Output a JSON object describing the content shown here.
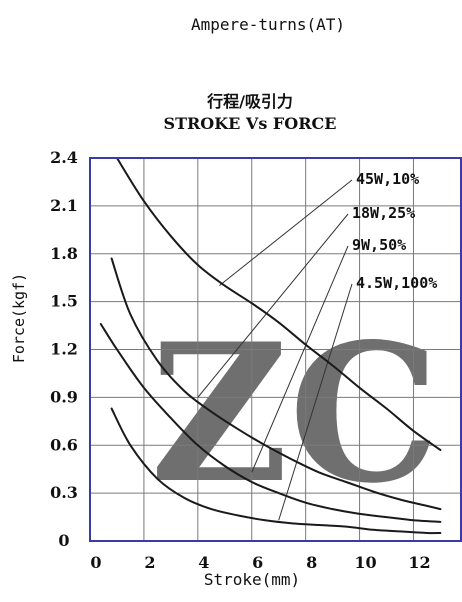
{
  "header": {
    "top_label": "Ampere-turns(AT)",
    "title_cn": "行程/吸引力",
    "title_en": "STROKE Vs FORCE"
  },
  "colors": {
    "frame": "#3a3aa8",
    "grid": "#7a7a7a",
    "curve": "#1a1a1a",
    "leader": "#333333",
    "watermark": "#d8dcf0"
  },
  "watermark": {
    "text": "ZC"
  },
  "chart_data": {
    "type": "line",
    "title": "STROKE Vs FORCE",
    "xlabel": "Stroke(mm)",
    "ylabel": "Force(kgf)",
    "xlim": [
      0,
      13.8
    ],
    "ylim": [
      0,
      2.4
    ],
    "xticks": [
      0,
      2,
      4,
      6,
      8,
      10,
      12
    ],
    "yticks": [
      0,
      0.3,
      0.6,
      0.9,
      1.2,
      1.5,
      1.8,
      2.1,
      2.4
    ],
    "xtick_labels": [
      "0",
      "2",
      "4",
      "6",
      "8",
      "10",
      "12"
    ],
    "ytick_labels": [
      "0",
      "0.3",
      "0.6",
      "0.9",
      "1.2",
      "1.5",
      "1.8",
      "2.1",
      "2.4"
    ],
    "grid": true,
    "series": [
      {
        "name": "45W,10%",
        "x": [
          1.0,
          2.0,
          3.0,
          4.0,
          5.0,
          6.0,
          7.0,
          8.0,
          9.0,
          10.0,
          11.0,
          12.0,
          13.0
        ],
        "y": [
          2.4,
          2.13,
          1.91,
          1.73,
          1.6,
          1.49,
          1.37,
          1.23,
          1.1,
          0.96,
          0.83,
          0.69,
          0.57
        ],
        "label_point": [
          4.8,
          1.6
        ]
      },
      {
        "name": "18W,25%",
        "x": [
          0.8,
          1.5,
          2.5,
          3.5,
          4.5,
          5.5,
          6.5,
          7.5,
          8.5,
          9.5,
          10.5,
          11.5,
          12.5,
          13.0
        ],
        "y": [
          1.77,
          1.42,
          1.13,
          0.94,
          0.81,
          0.7,
          0.6,
          0.51,
          0.43,
          0.37,
          0.31,
          0.26,
          0.22,
          0.2
        ],
        "label_point": [
          4.0,
          0.9
        ]
      },
      {
        "name": "9W,50%",
        "x": [
          0.4,
          1.0,
          2.0,
          3.0,
          4.0,
          5.0,
          6.0,
          7.0,
          8.0,
          9.0,
          10.0,
          11.0,
          12.0,
          13.0
        ],
        "y": [
          1.36,
          1.2,
          0.96,
          0.77,
          0.6,
          0.47,
          0.37,
          0.3,
          0.24,
          0.2,
          0.17,
          0.15,
          0.13,
          0.12
        ],
        "label_point": [
          6.0,
          0.43
        ]
      },
      {
        "name": "4.5W,100%",
        "x": [
          0.8,
          1.5,
          2.5,
          3.5,
          4.5,
          5.5,
          6.5,
          7.5,
          8.5,
          9.5,
          10.5,
          11.5,
          12.5,
          13.0
        ],
        "y": [
          0.83,
          0.6,
          0.39,
          0.27,
          0.2,
          0.16,
          0.13,
          0.11,
          0.1,
          0.09,
          0.07,
          0.06,
          0.05,
          0.05
        ],
        "label_point": [
          7.0,
          0.13
        ]
      }
    ]
  }
}
